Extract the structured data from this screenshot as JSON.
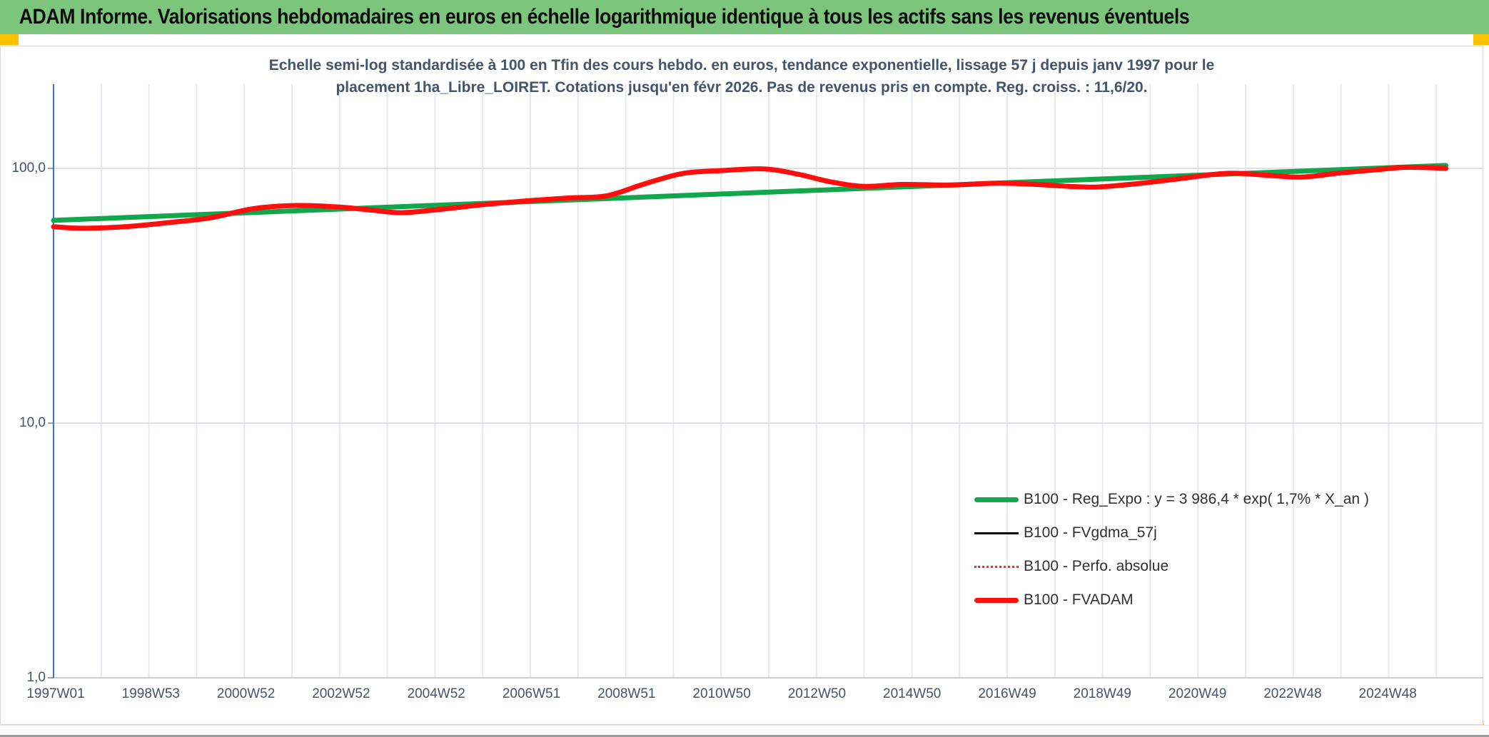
{
  "header": {
    "title": "ADAM Informe. Valorisations hebdomadaires en euros en échelle logarithmique identique à tous les actifs sans les revenus éventuels",
    "bg_color": "#7CC57D",
    "marker_color": "#FFC000"
  },
  "chart": {
    "subtitle_line1": "Echelle semi-log standardisée à 100 en Tfin des cours hebdo. en euros, tendance exponentielle, lissage 57 j depuis janv 1997 pour le",
    "subtitle_line2": "placement 1ha_Libre_LOIRET. Cotations jusqu'en févr 2026. Pas de revenus pris en compte. Reg. croiss. : 11,6/20."
  },
  "legend": {
    "items": [
      {
        "label": "B100 - Reg_Expo : y = 3 986,4 * exp( 1,7% *  X_an )",
        "swatch": "green-thick-line"
      },
      {
        "label": "B100 - FVgdma_57j",
        "swatch": "black-thin-line"
      },
      {
        "label": "B100 - Perfo. absolue",
        "swatch": "red-dotted-line"
      },
      {
        "label": "B100 - FVADAM",
        "swatch": "red-thick-line"
      }
    ]
  },
  "chart_data": {
    "type": "line",
    "title": "Echelle semi-log standardisée à 100 en Tfin des cours hebdo. en euros, tendance exponentielle, lissage 57 j depuis janv 1997 pour le placement 1ha_Libre_LOIRET. Cotations jusqu'en févr 2026. Pas de revenus pris en compte. Reg. croiss. : 11,6/20.",
    "y_axis": {
      "scale": "log10",
      "ticks": [
        {
          "label": "100,0",
          "value": 100
        },
        {
          "label": "10,0",
          "value": 10
        },
        {
          "label": "1,0",
          "value": 1
        }
      ],
      "range": [
        1,
        215
      ],
      "axis_color": "#4472C4"
    },
    "x_axis": {
      "unit": "ISO week",
      "labels": [
        "1997W01",
        "1998W53",
        "2000W52",
        "2002W52",
        "2004W52",
        "2006W51",
        "2008W51",
        "2010W50",
        "2012W50",
        "2014W50",
        "2016W49",
        "2018W49",
        "2020W49",
        "2022W48",
        "2024W48"
      ],
      "label_interval_years": 2,
      "range_years": [
        1997.0,
        2026.2
      ],
      "grid_every_years": 1,
      "grid_on": true
    },
    "legend_position": "inside-bottom-right",
    "series": [
      {
        "name": "B100 - Reg_Expo : y = 3 986,4 * exp( 1,7% *  X_an )",
        "color": "#12A74D",
        "style": "solid",
        "width": 7,
        "regression": "y = 3 986,4 * exp( 1,7% * X_an )",
        "points": [
          [
            1997.0,
            62.5
          ],
          [
            2026.2,
            102.7
          ]
        ]
      },
      {
        "name": "B100 - FVgdma_57j",
        "color": "#000000",
        "style": "solid",
        "width": 3,
        "coincident_with": "B100 - FVADAM",
        "visible_separately": false
      },
      {
        "name": "B100 - Perfo. absolue",
        "color": "#E03A3A",
        "style": "dotted",
        "width": 2,
        "coincident_with": "B100 - FVADAM",
        "visible_separately": false
      },
      {
        "name": "B100 - FVADAM",
        "color": "#FF0E0E",
        "style": "solid",
        "width": 7,
        "points": [
          [
            1997.0,
            59
          ],
          [
            1997.6,
            58.2
          ],
          [
            1998.5,
            59
          ],
          [
            1999.5,
            61.5
          ],
          [
            2000.3,
            64
          ],
          [
            2001.2,
            69.5
          ],
          [
            2002.1,
            71.5
          ],
          [
            2003.0,
            70.5
          ],
          [
            2003.7,
            68.5
          ],
          [
            2004.3,
            67
          ],
          [
            2005.1,
            69
          ],
          [
            2006.0,
            72
          ],
          [
            2006.9,
            74.5
          ],
          [
            2007.8,
            76.5
          ],
          [
            2008.6,
            78
          ],
          [
            2009.4,
            87
          ],
          [
            2010.2,
            95.5
          ],
          [
            2011.0,
            98
          ],
          [
            2011.9,
            99.5
          ],
          [
            2012.6,
            95
          ],
          [
            2013.3,
            88.5
          ],
          [
            2014.0,
            85
          ],
          [
            2014.8,
            86.5
          ],
          [
            2015.8,
            86
          ],
          [
            2016.8,
            87.5
          ],
          [
            2017.6,
            86.5
          ],
          [
            2018.3,
            85
          ],
          [
            2018.9,
            84.5
          ],
          [
            2019.7,
            87
          ],
          [
            2020.6,
            91
          ],
          [
            2021.4,
            95
          ],
          [
            2021.9,
            95.5
          ],
          [
            2022.6,
            93.5
          ],
          [
            2023.2,
            92.5
          ],
          [
            2024.0,
            96
          ],
          [
            2024.8,
            99
          ],
          [
            2025.4,
            101
          ],
          [
            2026.2,
            100
          ]
        ]
      }
    ]
  }
}
